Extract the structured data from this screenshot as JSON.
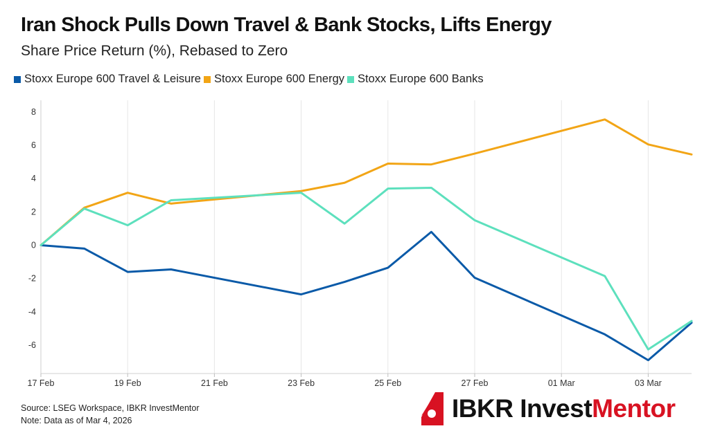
{
  "header": {
    "title": "Iran Shock Pulls Down Travel & Bank Stocks, Lifts Energy",
    "subtitle": "Share Price Return (%), Rebased to Zero"
  },
  "footer": {
    "source": "Source: LSEG Workspace, IBKR InvestMentor",
    "note": "Note: Data as of Mar 4, 2026",
    "logo_text_main": "IBKR Invest",
    "logo_text_accent": "Mentor"
  },
  "colors": {
    "travel": "#0a5aa8",
    "energy": "#f2a516",
    "banks": "#5de0bd",
    "brand_red": "#d81222",
    "grid": "#e6e6e6"
  },
  "chart_data": {
    "type": "line",
    "title": "Iran Shock Pulls Down Travel & Bank Stocks, Lifts Energy",
    "subtitle": "Share Price Return (%), Rebased to Zero",
    "xlabel": "",
    "ylabel": "",
    "x": [
      "17 Feb",
      "18 Feb",
      "19 Feb",
      "20 Feb",
      "23 Feb",
      "24 Feb",
      "25 Feb",
      "26 Feb",
      "27 Feb",
      "02 Mar",
      "03 Mar",
      "04 Mar"
    ],
    "x_dates": [
      "2026-02-17",
      "2026-02-18",
      "2026-02-19",
      "2026-02-20",
      "2026-02-23",
      "2026-02-24",
      "2026-02-25",
      "2026-02-26",
      "2026-02-27",
      "2026-03-02",
      "2026-03-03",
      "2026-03-04"
    ],
    "tick_labels": [
      "17 Feb",
      "19 Feb",
      "21 Feb",
      "23 Feb",
      "25 Feb",
      "27 Feb",
      "01 Mar",
      "03 Mar"
    ],
    "tick_dates": [
      "2026-02-17",
      "2026-02-19",
      "2026-02-21",
      "2026-02-23",
      "2026-02-25",
      "2026-02-27",
      "2026-03-01",
      "2026-03-03"
    ],
    "y_ticks": [
      8,
      6,
      4,
      2,
      0,
      -2,
      -4,
      -6
    ],
    "y_tick_labels": [
      "8",
      "6",
      "4",
      "2",
      "0",
      "-2",
      "-4",
      "-6"
    ],
    "ylim": [
      -7.7,
      8.7
    ],
    "xlim": [
      "2026-02-17",
      "2026-03-04"
    ],
    "grid": "vertical",
    "legend_position": "top-left",
    "series": [
      {
        "name": "Stoxx Europe 600 Travel & Leisure",
        "color_key": "travel",
        "values": [
          0.0,
          -0.2,
          -1.6,
          -1.45,
          -2.95,
          -2.2,
          -1.35,
          0.8,
          -1.95,
          -5.35,
          -6.9,
          -4.65
        ]
      },
      {
        "name": "Stoxx Europe 600 Energy",
        "color_key": "energy",
        "values": [
          0.0,
          2.25,
          3.15,
          2.5,
          3.25,
          3.75,
          4.9,
          4.85,
          5.5,
          7.55,
          6.05,
          5.45
        ]
      },
      {
        "name": "Stoxx Europe 600 Banks",
        "color_key": "banks",
        "values": [
          0.0,
          2.2,
          1.2,
          2.7,
          3.15,
          1.3,
          3.4,
          3.45,
          1.5,
          -1.85,
          -6.25,
          -4.55
        ]
      }
    ]
  }
}
